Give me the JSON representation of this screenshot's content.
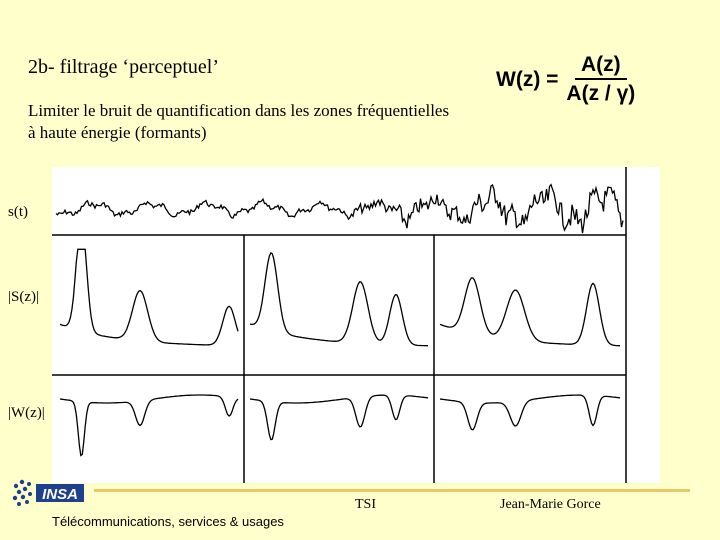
{
  "slide": {
    "title": "2b- filtrage  ‘perceptuel’",
    "intro_line1": "Limiter le bruit de quantification dans les zones fréquentielles",
    "intro_line2": "à haute énergie (formants)"
  },
  "formula": {
    "lhs": "W(z) =",
    "numerator": "A(z)",
    "denominator": "A(z / γ)"
  },
  "figure": {
    "labels": {
      "signal": "s(t)",
      "spectrum": "|S(z)|",
      "weighting": "|W(z)|"
    }
  },
  "footer": {
    "center": "TSI",
    "right": "Jean-Marie Gorce",
    "left": "Télécommunications, services & usages"
  },
  "logo": {
    "text": "INSA"
  },
  "colors": {
    "background": "#ffffcc",
    "accent_line": "#e6c96a",
    "logo_blue": "#1f3f8f"
  }
}
